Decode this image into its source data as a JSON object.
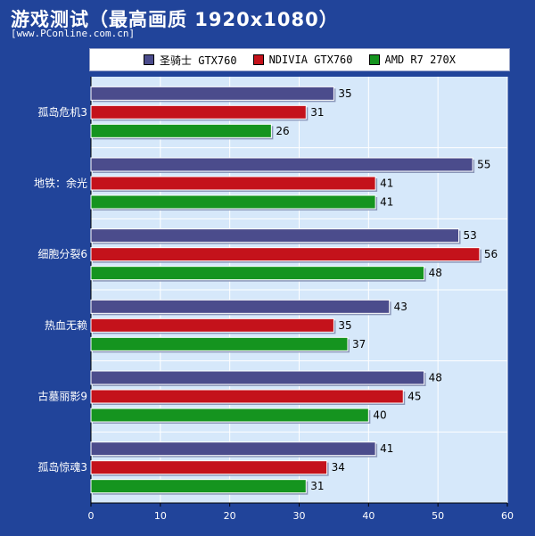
{
  "header": {
    "title": "游戏测试（最高画质 1920x1080）",
    "source": "[www.PConline.com.cn]"
  },
  "colors": {
    "background": "#21449a",
    "plot_area": "#d6e8fa",
    "gridline": "#ffffff"
  },
  "chart_data": {
    "type": "bar",
    "orientation": "horizontal",
    "title": "游戏测试（最高画质 1920x1080）",
    "categories": [
      "孤岛危机3",
      "地铁：余光",
      "细胞分裂6",
      "热血无赖",
      "古墓丽影9",
      "孤岛惊魂3"
    ],
    "series": [
      {
        "name": "圣骑士 GTX760",
        "color": "#4b4c8c",
        "values": [
          35,
          55,
          53,
          43,
          48,
          41
        ]
      },
      {
        "name": "NDIVIA GTX760",
        "color": "#c4121b",
        "values": [
          31,
          41,
          56,
          35,
          45,
          34
        ]
      },
      {
        "name": "AMD R7 270X",
        "color": "#15941f",
        "values": [
          26,
          41,
          48,
          37,
          40,
          31
        ]
      }
    ],
    "xlim": [
      0,
      60
    ],
    "x_ticks": [
      "0",
      "10",
      "20",
      "30",
      "40",
      "50",
      "60"
    ],
    "grid": true,
    "legend_position": "top"
  }
}
